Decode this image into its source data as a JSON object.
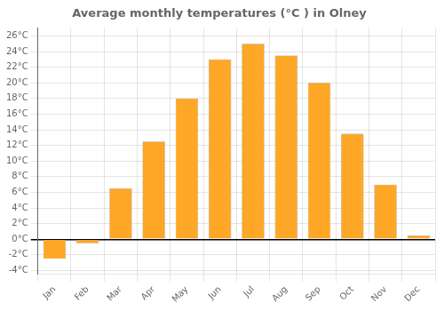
{
  "chart_data": {
    "type": "bar",
    "title": "Average monthly temperatures (°C ) in Olney",
    "categories": [
      "Jan",
      "Feb",
      "Mar",
      "Apr",
      "May",
      "Jun",
      "Jul",
      "Aug",
      "Sep",
      "Oct",
      "Nov",
      "Dec"
    ],
    "values": [
      -2.5,
      -0.5,
      6.5,
      12.5,
      18.0,
      23.0,
      25.0,
      23.5,
      20.0,
      13.5,
      7.0,
      0.5
    ],
    "color": "#FFA726",
    "ylim": [
      -4.5,
      27
    ],
    "yticks": [
      {
        "value": -4,
        "label": "-4°C"
      },
      {
        "value": -2,
        "label": "-2°C"
      },
      {
        "value": 0,
        "label": "0°C"
      },
      {
        "value": 2,
        "label": "2°C"
      },
      {
        "value": 4,
        "label": "4°C"
      },
      {
        "value": 6,
        "label": "6°C"
      },
      {
        "value": 8,
        "label": "8°C"
      },
      {
        "value": 10,
        "label": "10°C"
      },
      {
        "value": 12,
        "label": "12°C"
      },
      {
        "value": 14,
        "label": "14°C"
      },
      {
        "value": 16,
        "label": "16°C"
      },
      {
        "value": 18,
        "label": "18°C"
      },
      {
        "value": 20,
        "label": "20°C"
      },
      {
        "value": 22,
        "label": "22°C"
      },
      {
        "value": 24,
        "label": "24°C"
      },
      {
        "value": 26,
        "label": "26°C"
      }
    ],
    "grid": true
  }
}
